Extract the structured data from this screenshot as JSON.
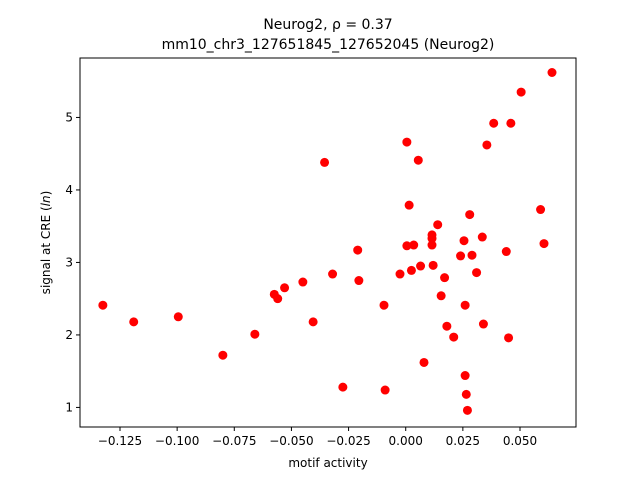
{
  "chart_data": {
    "type": "scatter",
    "title_line1": "Neurog2, ρ = 0.37",
    "title_line2": "mm10_chr3_127651845_127652045 (Neurog2)",
    "xlabel": "motif activity",
    "ylabel": "signal at CRE (ln)",
    "xlim": [
      -0.1425,
      0.0745
    ],
    "ylim": [
      0.73,
      5.82
    ],
    "xticks": [
      -0.125,
      -0.1,
      -0.075,
      -0.05,
      -0.025,
      0.0,
      0.025,
      0.05
    ],
    "xtick_labels": [
      "−0.125",
      "−0.100",
      "−0.075",
      "−0.050",
      "−0.025",
      "0.000",
      "0.025",
      "0.050"
    ],
    "yticks": [
      1,
      2,
      3,
      4,
      5
    ],
    "ytick_labels": [
      "1",
      "2",
      "3",
      "4",
      "5"
    ],
    "grid": false,
    "marker_color": "#ff0000",
    "points": [
      {
        "x": -0.1325,
        "y": 2.41
      },
      {
        "x": -0.119,
        "y": 2.18
      },
      {
        "x": -0.0995,
        "y": 2.25
      },
      {
        "x": -0.08,
        "y": 1.72
      },
      {
        "x": -0.066,
        "y": 2.01
      },
      {
        "x": -0.0575,
        "y": 2.56
      },
      {
        "x": -0.056,
        "y": 2.5
      },
      {
        "x": -0.053,
        "y": 2.65
      },
      {
        "x": -0.045,
        "y": 2.73
      },
      {
        "x": -0.0405,
        "y": 2.18
      },
      {
        "x": -0.0355,
        "y": 4.38
      },
      {
        "x": -0.032,
        "y": 2.84
      },
      {
        "x": -0.0275,
        "y": 1.28
      },
      {
        "x": -0.021,
        "y": 3.17
      },
      {
        "x": -0.0205,
        "y": 2.75
      },
      {
        "x": -0.0095,
        "y": 2.41
      },
      {
        "x": -0.009,
        "y": 1.24
      },
      {
        "x": -0.0025,
        "y": 2.84
      },
      {
        "x": 0.0005,
        "y": 4.66
      },
      {
        "x": 0.0005,
        "y": 3.23
      },
      {
        "x": 0.0015,
        "y": 3.79
      },
      {
        "x": 0.0025,
        "y": 2.89
      },
      {
        "x": 0.0035,
        "y": 3.24
      },
      {
        "x": 0.0055,
        "y": 4.41
      },
      {
        "x": 0.0065,
        "y": 2.95
      },
      {
        "x": 0.008,
        "y": 1.62
      },
      {
        "x": 0.0115,
        "y": 3.38
      },
      {
        "x": 0.0115,
        "y": 3.33
      },
      {
        "x": 0.0115,
        "y": 3.24
      },
      {
        "x": 0.012,
        "y": 2.96
      },
      {
        "x": 0.014,
        "y": 3.52
      },
      {
        "x": 0.0155,
        "y": 2.54
      },
      {
        "x": 0.017,
        "y": 2.79
      },
      {
        "x": 0.018,
        "y": 2.12
      },
      {
        "x": 0.021,
        "y": 1.97
      },
      {
        "x": 0.024,
        "y": 3.09
      },
      {
        "x": 0.0255,
        "y": 3.3
      },
      {
        "x": 0.026,
        "y": 2.41
      },
      {
        "x": 0.026,
        "y": 1.44
      },
      {
        "x": 0.0265,
        "y": 1.18
      },
      {
        "x": 0.027,
        "y": 0.96
      },
      {
        "x": 0.028,
        "y": 3.66
      },
      {
        "x": 0.029,
        "y": 3.1
      },
      {
        "x": 0.031,
        "y": 2.86
      },
      {
        "x": 0.0335,
        "y": 3.35
      },
      {
        "x": 0.034,
        "y": 2.15
      },
      {
        "x": 0.0355,
        "y": 4.62
      },
      {
        "x": 0.0385,
        "y": 4.92
      },
      {
        "x": 0.044,
        "y": 3.15
      },
      {
        "x": 0.045,
        "y": 1.96
      },
      {
        "x": 0.046,
        "y": 4.92
      },
      {
        "x": 0.0505,
        "y": 5.35
      },
      {
        "x": 0.059,
        "y": 3.73
      },
      {
        "x": 0.0605,
        "y": 3.26
      },
      {
        "x": 0.064,
        "y": 5.62
      }
    ]
  }
}
